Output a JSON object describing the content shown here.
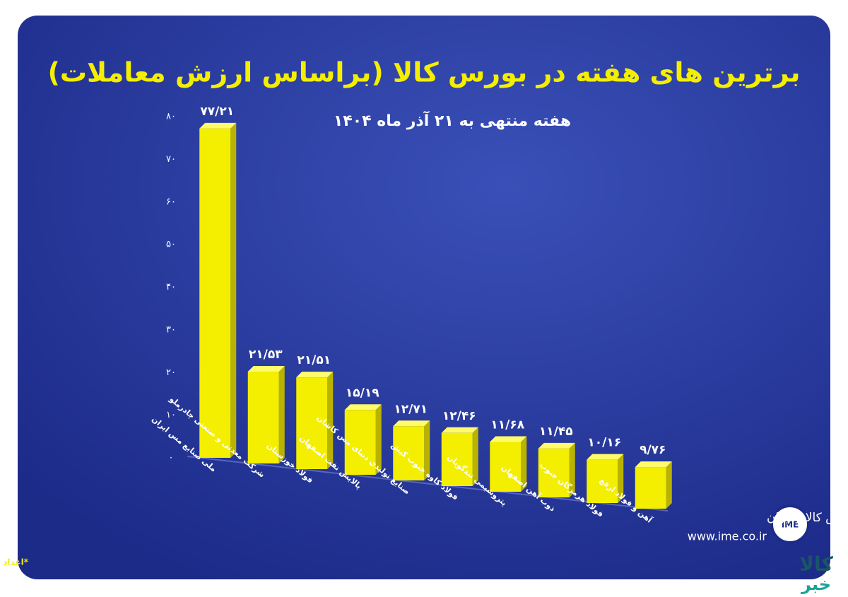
{
  "chart_data": {
    "type": "bar",
    "title": "برترین های هفته در بورس کالا (براساس ارزش معاملات)",
    "subtitle": "هفته منتهی به ۲۱ آذر ماه ۱۴۰۴",
    "categories": [
      "ملی صنایع مس ایران",
      "شرکت معدنی و صنعتی چادرملو",
      "فولاد خوزستان",
      "پالایش نفت اصفهان",
      "صنایع تولیدی دنیای مس کاشان",
      "فولاد کاوه جنوب کیش",
      "پتروشیمی تندگویان",
      "ذوب آهن اصفهان",
      "فولاد هرمزگان جنوب",
      "آهن و فولاد ارفع"
    ],
    "values": [
      77.21,
      21.53,
      21.51,
      15.19,
      12.71,
      12.46,
      11.68,
      11.45,
      10.16,
      9.76
    ],
    "value_labels": [
      "۷۷/۲۱",
      "۲۱/۵۳",
      "۲۱/۵۱",
      "۱۵/۱۹",
      "۱۲/۷۱",
      "۱۲/۴۶",
      "۱۱/۶۸",
      "۱۱/۴۵",
      "۱۰/۱۶",
      "۹/۷۶"
    ],
    "color": "#f4ee00",
    "ylim": [
      0,
      80
    ],
    "yticks": [
      {
        "value": 0,
        "label": "۰"
      },
      {
        "value": 10,
        "label": "۱۰"
      },
      {
        "value": 20,
        "label": "۲۰"
      },
      {
        "value": 30,
        "label": "۳۰"
      },
      {
        "value": 40,
        "label": "۴۰"
      },
      {
        "value": 50,
        "label": "۵۰"
      },
      {
        "value": 60,
        "label": "۶۰"
      },
      {
        "value": 70,
        "label": "۷۰"
      },
      {
        "value": 80,
        "label": "۸۰"
      }
    ],
    "footnote": "*اعداد برحسب هزار میلیارد ریال است",
    "logo": {
      "name": "بورس کالای ایران",
      "url": "www.ime.co.ir",
      "mark": "IME"
    },
    "watermark": [
      "کالا",
      "خبر"
    ]
  }
}
